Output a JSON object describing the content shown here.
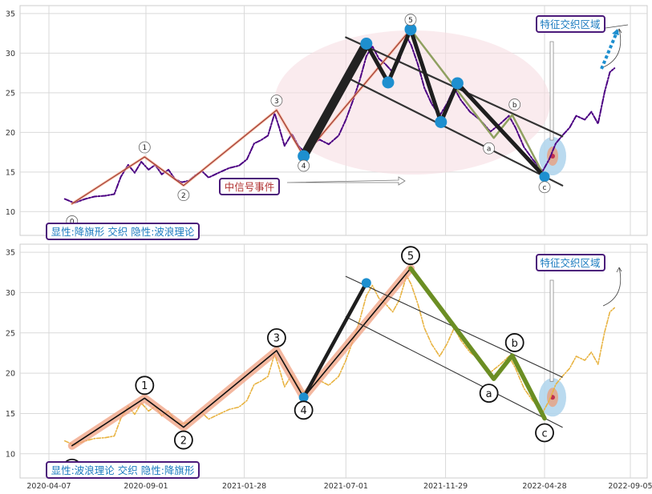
{
  "colors": {
    "top_price": "#4b0082",
    "bottom_price": "#e8b341",
    "wave_thin": "#8b2323",
    "wave_band": "#f0a080",
    "channel": "#333333",
    "correction_top": "#8fa060",
    "correction_bottom": "#6b8e23",
    "box_border": "#4b1a7a",
    "box_text_blue": "#1a7abf",
    "box_text_red": "#b03030",
    "zone_fill": "#aed4ec",
    "node_fill": "#1e8fcf",
    "ellipse_fill": "#f7dde2",
    "grid": "#d9d9d9",
    "axis_frame": "#cccccc"
  },
  "chart_data": [
    {
      "type": "line",
      "panel": "top",
      "ylim": [
        7,
        36
      ],
      "yticks": [
        "10",
        "15",
        "20",
        "25",
        "30",
        "35"
      ],
      "grid": true,
      "wave_points": [
        {
          "label": "0",
          "x": "2020-05-12",
          "y": 11.0
        },
        {
          "label": "1",
          "x": "2020-08-30",
          "y": 16.9
        },
        {
          "label": "2",
          "x": "2020-10-28",
          "y": 13.3
        },
        {
          "label": "3",
          "x": "2021-03-18",
          "y": 22.8
        },
        {
          "label": "4",
          "x": "2021-04-28",
          "y": 17.0
        },
        {
          "label": "5",
          "x": "2021-10-07",
          "y": 33.0
        }
      ],
      "thick_impulse": [
        {
          "x": "2021-04-28",
          "y": 17.0
        },
        {
          "x": "2021-08-01",
          "y": 31.2
        },
        {
          "x": "2021-09-03",
          "y": 26.3
        },
        {
          "x": "2021-10-07",
          "y": 33.0
        },
        {
          "x": "2021-11-22",
          "y": 21.3
        },
        {
          "x": "2021-12-17",
          "y": 26.2
        },
        {
          "x": "2022-04-28",
          "y": 14.4
        }
      ],
      "abc_points": [
        {
          "label": "a",
          "x": "2022-02-10",
          "y": 19.3
        },
        {
          "label": "b",
          "x": "2022-03-10",
          "y": 22.2
        },
        {
          "label": "c",
          "x": "2022-04-28",
          "y": 14.4
        }
      ],
      "annotations": {
        "signal_box": "中信号事件",
        "zone_box": "特征交织区域",
        "info_box": "显性:降旗形 交织 隐性:波浪理论"
      },
      "price_series": [
        [
          "2020-05-01",
          11.6
        ],
        [
          "2020-05-15",
          11.1
        ],
        [
          "2020-06-01",
          11.6
        ],
        [
          "2020-06-15",
          11.9
        ],
        [
          "2020-07-01",
          12.0
        ],
        [
          "2020-07-15",
          12.2
        ],
        [
          "2020-07-25",
          14.4
        ],
        [
          "2020-08-05",
          15.9
        ],
        [
          "2020-08-15",
          14.9
        ],
        [
          "2020-08-25",
          16.3
        ],
        [
          "2020-09-05",
          15.3
        ],
        [
          "2020-09-15",
          15.9
        ],
        [
          "2020-09-25",
          14.7
        ],
        [
          "2020-10-05",
          15.3
        ],
        [
          "2020-10-15",
          14.1
        ],
        [
          "2020-10-25",
          13.7
        ],
        [
          "2020-11-05",
          13.9
        ],
        [
          "2020-11-15",
          14.6
        ],
        [
          "2020-11-25",
          15.1
        ],
        [
          "2020-12-05",
          14.3
        ],
        [
          "2020-12-20",
          14.9
        ],
        [
          "2021-01-05",
          15.5
        ],
        [
          "2021-01-20",
          15.8
        ],
        [
          "2021-02-01",
          16.6
        ],
        [
          "2021-02-12",
          18.6
        ],
        [
          "2021-02-22",
          19.0
        ],
        [
          "2021-03-05",
          19.6
        ],
        [
          "2021-03-15",
          22.4
        ],
        [
          "2021-03-22",
          20.6
        ],
        [
          "2021-03-30",
          18.3
        ],
        [
          "2021-04-10",
          19.8
        ],
        [
          "2021-04-20",
          18.3
        ],
        [
          "2021-04-28",
          17.6
        ],
        [
          "2021-05-10",
          18.4
        ],
        [
          "2021-05-22",
          19.1
        ],
        [
          "2021-06-05",
          18.5
        ],
        [
          "2021-06-20",
          19.6
        ],
        [
          "2021-07-01",
          21.6
        ],
        [
          "2021-07-12",
          24.1
        ],
        [
          "2021-07-22",
          26.6
        ],
        [
          "2021-08-01",
          29.6
        ],
        [
          "2021-08-10",
          30.9
        ],
        [
          "2021-08-20",
          29.3
        ],
        [
          "2021-08-30",
          28.6
        ],
        [
          "2021-09-10",
          27.6
        ],
        [
          "2021-09-20",
          29.1
        ],
        [
          "2021-10-01",
          32.1
        ],
        [
          "2021-10-08",
          31.0
        ],
        [
          "2021-10-18",
          28.6
        ],
        [
          "2021-10-28",
          25.6
        ],
        [
          "2021-11-08",
          23.6
        ],
        [
          "2021-11-20",
          22.1
        ],
        [
          "2021-12-01",
          23.6
        ],
        [
          "2021-12-12",
          25.6
        ],
        [
          "2021-12-22",
          24.1
        ],
        [
          "2022-01-05",
          22.6
        ],
        [
          "2022-01-20",
          21.6
        ],
        [
          "2022-02-05",
          20.1
        ],
        [
          "2022-02-20",
          21.1
        ],
        [
          "2022-03-05",
          22.1
        ],
        [
          "2022-03-15",
          20.6
        ],
        [
          "2022-03-28",
          18.1
        ],
        [
          "2022-04-10",
          16.6
        ],
        [
          "2022-04-25",
          15.1
        ],
        [
          "2022-05-05",
          16.6
        ],
        [
          "2022-05-15",
          18.6
        ],
        [
          "2022-05-25",
          19.6
        ],
        [
          "2022-06-05",
          20.6
        ],
        [
          "2022-06-15",
          22.1
        ],
        [
          "2022-06-28",
          21.6
        ],
        [
          "2022-07-08",
          22.6
        ],
        [
          "2022-07-18",
          21.1
        ],
        [
          "2022-07-28",
          25.1
        ],
        [
          "2022-08-05",
          27.6
        ],
        [
          "2022-08-12",
          28.1
        ]
      ]
    },
    {
      "type": "line",
      "panel": "bottom",
      "ylim": [
        7,
        36
      ],
      "yticks": [
        "10",
        "15",
        "20",
        "25",
        "30",
        "35"
      ],
      "xticks": [
        "2020-04-07",
        "2020-09-01",
        "2021-01-28",
        "2021-07-01",
        "2021-11-29",
        "2022-04-28",
        "2022-09-05"
      ],
      "grid": true,
      "wave_points": [
        {
          "label": "0",
          "x": "2020-05-12",
          "y": 11.0
        },
        {
          "label": "1",
          "x": "2020-08-30",
          "y": 16.9
        },
        {
          "label": "2",
          "x": "2020-10-28",
          "y": 13.3
        },
        {
          "label": "3",
          "x": "2021-03-18",
          "y": 22.8
        },
        {
          "label": "4",
          "x": "2021-04-28",
          "y": 17.0
        },
        {
          "label": "5",
          "x": "2021-10-07",
          "y": 33.0
        }
      ],
      "thick_impulse": [
        {
          "x": "2021-04-28",
          "y": 17.0
        },
        {
          "x": "2021-08-01",
          "y": 31.2
        }
      ],
      "abc_points": [
        {
          "label": "a",
          "x": "2022-02-10",
          "y": 19.3
        },
        {
          "label": "b",
          "x": "2022-03-10",
          "y": 22.2
        },
        {
          "label": "c",
          "x": "2022-04-28",
          "y": 14.4
        }
      ],
      "annotations": {
        "zone_box": "特征交织区域",
        "info_box": "显性:波浪理论 交织 隐性:降旗形"
      }
    }
  ]
}
